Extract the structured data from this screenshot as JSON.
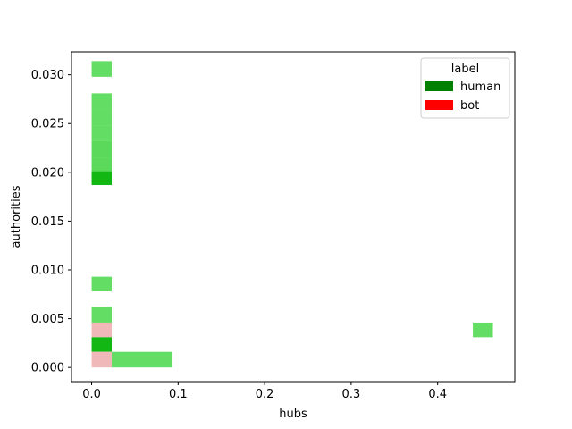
{
  "chart_data": {
    "type": "heatmap",
    "title": "",
    "xlabel": "hubs",
    "ylabel": "authorities",
    "xlim": [
      -0.0233,
      0.4892
    ],
    "ylim": [
      -0.00145,
      0.03235
    ],
    "x_ticks": [
      0.0,
      0.1,
      0.2,
      0.3,
      0.4
    ],
    "x_tick_labels": [
      "0.0",
      "0.1",
      "0.2",
      "0.3",
      "0.4"
    ],
    "y_ticks": [
      0.0,
      0.005,
      0.01,
      0.015,
      0.02,
      0.025,
      0.03
    ],
    "y_tick_labels": [
      "0.000",
      "0.005",
      "0.010",
      "0.015",
      "0.020",
      "0.025",
      "0.030"
    ],
    "grid": false,
    "legend": {
      "title": "label",
      "placement": "upper right",
      "entries": [
        {
          "name": "human",
          "color": "#008000"
        },
        {
          "name": "bot",
          "color": "#ff0000"
        }
      ]
    },
    "cells": [
      {
        "series": "human",
        "x0": 0.0,
        "x1": 0.0232,
        "y0": 0.0298,
        "y1": 0.0314,
        "color": "#63dd63"
      },
      {
        "series": "human",
        "x0": 0.0,
        "x1": 0.0232,
        "y0": 0.0264,
        "y1": 0.0281,
        "color": "#63dd63"
      },
      {
        "series": "human",
        "x0": 0.0,
        "x1": 0.0232,
        "y0": 0.0248,
        "y1": 0.0264,
        "color": "#63dd63"
      },
      {
        "series": "human",
        "x0": 0.0,
        "x1": 0.0232,
        "y0": 0.0232,
        "y1": 0.0248,
        "color": "#63dd63"
      },
      {
        "series": "human",
        "x0": 0.0,
        "x1": 0.0232,
        "y0": 0.0215,
        "y1": 0.0232,
        "color": "#5ad95a"
      },
      {
        "series": "human",
        "x0": 0.0,
        "x1": 0.0232,
        "y0": 0.0199,
        "y1": 0.0215,
        "color": "#5ad95a"
      },
      {
        "series": "human",
        "x0": 0.0,
        "x1": 0.0232,
        "y0": 0.0187,
        "y1": 0.0201,
        "color": "#13b713"
      },
      {
        "series": "human",
        "x0": 0.0,
        "x1": 0.0232,
        "y0": 0.0078,
        "y1": 0.0093,
        "color": "#63dd63"
      },
      {
        "series": "human",
        "x0": 0.0,
        "x1": 0.0232,
        "y0": 0.0046,
        "y1": 0.0062,
        "color": "#63dd63"
      },
      {
        "series": "bot",
        "x0": 0.0,
        "x1": 0.0232,
        "y0": 0.0031,
        "y1": 0.0046,
        "color": "#f0b8b8"
      },
      {
        "series": "human",
        "x0": 0.0,
        "x1": 0.0232,
        "y0": 0.0016,
        "y1": 0.0031,
        "color": "#13b713"
      },
      {
        "series": "bot",
        "x0": 0.0,
        "x1": 0.0232,
        "y0": 0.0,
        "y1": 0.0016,
        "color": "#f0b8b8"
      },
      {
        "series": "human",
        "x0": 0.0232,
        "x1": 0.0928,
        "y0": 0.0,
        "y1": 0.0016,
        "color": "#63dd63"
      },
      {
        "series": "human",
        "x0": 0.4407,
        "x1": 0.4639,
        "y0": 0.0031,
        "y1": 0.0046,
        "color": "#63dd63"
      }
    ]
  }
}
